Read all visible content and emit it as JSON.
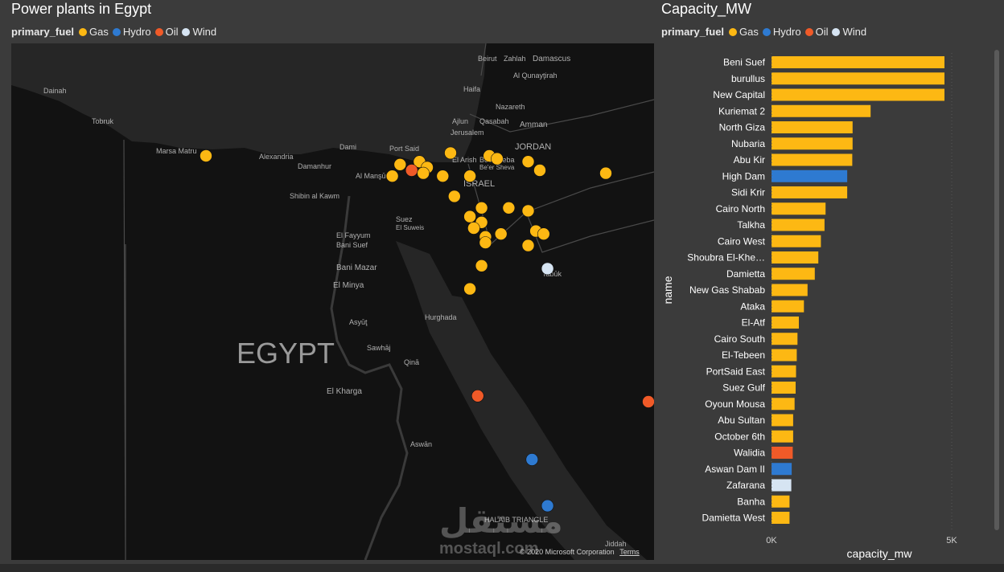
{
  "map": {
    "title": "Power plants in Egypt",
    "legend_title": "primary_fuel",
    "copyright": "© 2020 Microsoft Corporation",
    "terms": "Terms",
    "watermark_ar": "مستقل",
    "watermark_en": "mostaql.com"
  },
  "bar": {
    "title": "Capacity_MW",
    "legend_title": "primary_fuel"
  },
  "fuels": [
    {
      "name": "Gas",
      "color": "#fdb813"
    },
    {
      "name": "Hydro",
      "color": "#2e7ad1"
    },
    {
      "name": "Oil",
      "color": "#f05a28"
    },
    {
      "name": "Wind",
      "color": "#d6e4f2"
    }
  ],
  "map_labels": [
    {
      "text": "Beirut"
    },
    {
      "text": "Zahlah"
    },
    {
      "text": "Damascus"
    },
    {
      "text": "Al Qunayţirah"
    },
    {
      "text": "Haifa"
    },
    {
      "text": "Nazareth"
    },
    {
      "text": "Ajlun"
    },
    {
      "text": "Qasabah"
    },
    {
      "text": "Amman"
    },
    {
      "text": "Jerusalem"
    },
    {
      "text": "JORDAN"
    },
    {
      "text": "Port Said"
    },
    {
      "text": "El Arish"
    },
    {
      "text": "Beersheba"
    },
    {
      "text": "Be'er Sheva"
    },
    {
      "text": "ISRAEL"
    },
    {
      "text": "Dainah"
    },
    {
      "text": "Tobruk"
    },
    {
      "text": "Marsa Matru"
    },
    {
      "text": "Alexandria"
    },
    {
      "text": "Damanhur"
    },
    {
      "text": "Dami"
    },
    {
      "text": "Al Manşūrah"
    },
    {
      "text": "Shibin al Kawm"
    },
    {
      "text": "Suez"
    },
    {
      "text": "El Suweis"
    },
    {
      "text": "El Fayyum"
    },
    {
      "text": "Bani Suef"
    },
    {
      "text": "Bani Mazar"
    },
    {
      "text": "El Minya"
    },
    {
      "text": "Tabūk"
    },
    {
      "text": "Asyūţ"
    },
    {
      "text": "Hurghada"
    },
    {
      "text": "EGYPT"
    },
    {
      "text": "Sawhāj"
    },
    {
      "text": "Qinā"
    },
    {
      "text": "El Kharga"
    },
    {
      "text": "Aswān"
    },
    {
      "text": "HALAIB TRIANGLE"
    },
    {
      "text": "Jiddah"
    }
  ],
  "chart_data": [
    {
      "type": "scatter",
      "title": "Power plants in Egypt",
      "legend": "top-left",
      "points": [
        {
          "lon": 27.2,
          "lat": 31.35,
          "fuel": "Gas"
        },
        {
          "lon": 29.7,
          "lat": 31.2,
          "fuel": "Gas"
        },
        {
          "lon": 29.95,
          "lat": 31.25,
          "fuel": "Gas"
        },
        {
          "lon": 29.85,
          "lat": 31.1,
          "fuel": "Oil"
        },
        {
          "lon": 29.6,
          "lat": 31.0,
          "fuel": "Gas"
        },
        {
          "lon": 30.05,
          "lat": 31.15,
          "fuel": "Gas"
        },
        {
          "lon": 30.0,
          "lat": 31.05,
          "fuel": "Gas"
        },
        {
          "lon": 30.25,
          "lat": 31.0,
          "fuel": "Gas"
        },
        {
          "lon": 30.6,
          "lat": 31.0,
          "fuel": "Gas"
        },
        {
          "lon": 30.35,
          "lat": 31.4,
          "fuel": "Gas"
        },
        {
          "lon": 30.85,
          "lat": 31.35,
          "fuel": "Gas"
        },
        {
          "lon": 30.95,
          "lat": 31.3,
          "fuel": "Gas"
        },
        {
          "lon": 31.35,
          "lat": 31.25,
          "fuel": "Gas"
        },
        {
          "lon": 31.5,
          "lat": 31.1,
          "fuel": "Gas"
        },
        {
          "lon": 32.35,
          "lat": 31.05,
          "fuel": "Gas"
        },
        {
          "lon": 30.4,
          "lat": 30.65,
          "fuel": "Gas"
        },
        {
          "lon": 30.75,
          "lat": 30.45,
          "fuel": "Gas"
        },
        {
          "lon": 31.1,
          "lat": 30.45,
          "fuel": "Gas"
        },
        {
          "lon": 31.35,
          "lat": 30.4,
          "fuel": "Gas"
        },
        {
          "lon": 30.6,
          "lat": 30.3,
          "fuel": "Gas"
        },
        {
          "lon": 30.75,
          "lat": 30.2,
          "fuel": "Gas"
        },
        {
          "lon": 30.65,
          "lat": 30.1,
          "fuel": "Gas"
        },
        {
          "lon": 30.8,
          "lat": 29.95,
          "fuel": "Gas"
        },
        {
          "lon": 30.8,
          "lat": 29.85,
          "fuel": "Gas"
        },
        {
          "lon": 31.0,
          "lat": 30.0,
          "fuel": "Gas"
        },
        {
          "lon": 31.45,
          "lat": 30.05,
          "fuel": "Gas"
        },
        {
          "lon": 31.55,
          "lat": 30.0,
          "fuel": "Gas"
        },
        {
          "lon": 31.35,
          "lat": 29.8,
          "fuel": "Gas"
        },
        {
          "lon": 30.75,
          "lat": 29.45,
          "fuel": "Gas"
        },
        {
          "lon": 30.6,
          "lat": 29.05,
          "fuel": "Gas"
        },
        {
          "lon": 31.6,
          "lat": 29.4,
          "fuel": "Wind"
        },
        {
          "lon": 33.2,
          "lat": 27.95,
          "fuel": "Oil"
        },
        {
          "lon": 30.7,
          "lat": 27.2,
          "fuel": "Oil"
        },
        {
          "lon": 32.9,
          "lat": 27.1,
          "fuel": "Oil"
        },
        {
          "lon": 31.4,
          "lat": 26.1,
          "fuel": "Hydro"
        },
        {
          "lon": 31.6,
          "lat": 25.3,
          "fuel": "Hydro"
        },
        {
          "lon": 31.8,
          "lat": 24.15,
          "fuel": "Hydro"
        }
      ]
    },
    {
      "type": "bar",
      "orientation": "horizontal",
      "title": "Capacity_MW",
      "xlabel": "capacity_mw",
      "ylabel": "name",
      "xlim": [
        0,
        5000
      ],
      "xticks": [
        "0K",
        "5K"
      ],
      "legend": "top-left",
      "categories": [
        "Beni Suef",
        "burullus",
        "New Capital",
        "Kuriemat 2",
        "North Giza",
        "Nubaria",
        "Abu Kir",
        "High Dam",
        "Sidi Krir",
        "Cairo North",
        "Talkha",
        "Cairo West",
        "Shoubra El-Khe…",
        "Damietta",
        "New Gas Shabab",
        "Ataka",
        "El-Atf",
        "Cairo South",
        "El-Tebeen",
        "PortSaid East",
        "Suez Gulf",
        "Oyoun Mousa",
        "Abu Sultan",
        "October 6th",
        "Walidia",
        "Aswan Dam II",
        "Zafarana",
        "Banha",
        "Damietta West"
      ],
      "values": [
        4800,
        4800,
        4800,
        2750,
        2250,
        2250,
        2240,
        2100,
        2100,
        1500,
        1470,
        1370,
        1300,
        1200,
        1000,
        900,
        760,
        720,
        700,
        680,
        670,
        640,
        600,
        600,
        590,
        560,
        550,
        500,
        500
      ],
      "fuels": [
        "Gas",
        "Gas",
        "Gas",
        "Gas",
        "Gas",
        "Gas",
        "Gas",
        "Hydro",
        "Gas",
        "Gas",
        "Gas",
        "Gas",
        "Gas",
        "Gas",
        "Gas",
        "Gas",
        "Gas",
        "Gas",
        "Gas",
        "Gas",
        "Gas",
        "Gas",
        "Gas",
        "Gas",
        "Oil",
        "Hydro",
        "Wind",
        "Gas",
        "Gas"
      ]
    }
  ]
}
